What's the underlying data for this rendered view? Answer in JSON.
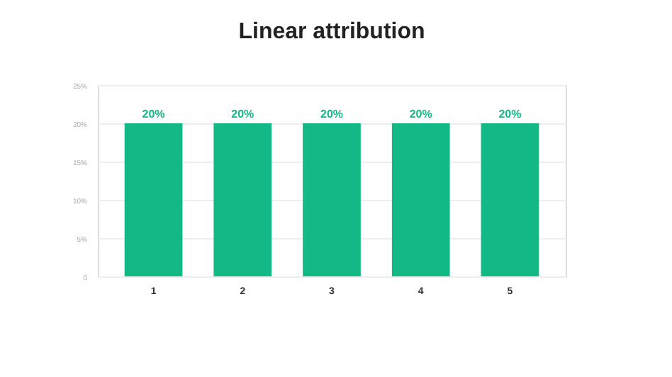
{
  "chart_data": {
    "type": "bar",
    "title": "Linear attribution",
    "categories": [
      "1",
      "2",
      "3",
      "4",
      "5"
    ],
    "values": [
      20,
      20,
      20,
      20,
      20
    ],
    "color": "#12b886",
    "value_labels": [
      "20%",
      "20%",
      "20%",
      "20%",
      "20%"
    ],
    "ylim": [
      0,
      25
    ],
    "yticks": [
      0,
      {
        "value": 5,
        "label": "5%"
      },
      {
        "value": 10,
        "label": "10%"
      },
      {
        "value": 15,
        "label": "15%"
      },
      {
        "value": 20,
        "label": "20%"
      },
      {
        "value": 25,
        "label": "25%"
      }
    ],
    "grid": "y"
  }
}
